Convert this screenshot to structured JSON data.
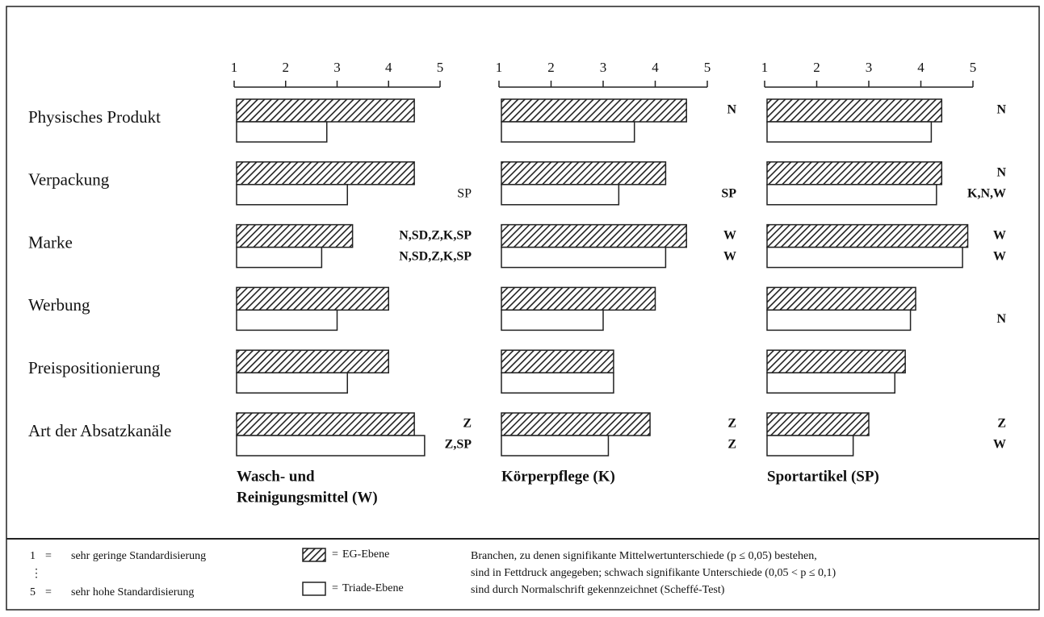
{
  "categories": [
    "Physisches Produkt",
    "Verpackung",
    "Marke",
    "Werbung",
    "Preispositionierung",
    "Art der Absatzkanäle"
  ],
  "chart_data": [
    {
      "type": "hbar",
      "title": [
        "Wasch- und",
        "Reinigungsmittel (W)"
      ],
      "xlim": [
        1,
        5
      ],
      "xticks": [
        1,
        2,
        3,
        4,
        5
      ],
      "series": [
        {
          "name": "EG-Ebene",
          "pattern": "hatch",
          "color": "#222222",
          "values": [
            4.5,
            4.5,
            3.3,
            4.0,
            4.0,
            4.5
          ],
          "notes": [
            null,
            null,
            {
              "text": "N,SD,Z,K,SP",
              "bold": true
            },
            null,
            null,
            {
              "text": "Z",
              "bold": true
            }
          ]
        },
        {
          "name": "Triade-Ebene",
          "pattern": "none",
          "color": "#ffffff",
          "values": [
            2.8,
            3.2,
            2.7,
            3.0,
            3.2,
            4.7
          ],
          "notes": [
            null,
            {
              "text": "SP",
              "bold": false
            },
            {
              "text": "N,SD,Z,K,SP",
              "bold": true
            },
            null,
            null,
            {
              "text": "Z,SP",
              "bold": true
            }
          ]
        }
      ]
    },
    {
      "type": "hbar",
      "title": [
        "Körperpflege (K)"
      ],
      "xlim": [
        1,
        5
      ],
      "xticks": [
        1,
        2,
        3,
        4,
        5
      ],
      "series": [
        {
          "name": "EG-Ebene",
          "pattern": "hatch",
          "color": "#222222",
          "values": [
            4.6,
            4.2,
            4.6,
            4.0,
            3.2,
            3.9
          ],
          "notes": [
            {
              "text": "N",
              "bold": true
            },
            null,
            {
              "text": "W",
              "bold": true
            },
            null,
            null,
            {
              "text": "Z",
              "bold": true
            }
          ]
        },
        {
          "name": "Triade-Ebene",
          "pattern": "none",
          "color": "#ffffff",
          "values": [
            3.6,
            3.3,
            4.2,
            3.0,
            3.2,
            3.1
          ],
          "notes": [
            null,
            {
              "text": "SP",
              "bold": true
            },
            {
              "text": "W",
              "bold": true
            },
            null,
            null,
            {
              "text": "Z",
              "bold": true
            }
          ]
        }
      ]
    },
    {
      "type": "hbar",
      "title": [
        "Sportartikel (SP)"
      ],
      "xlim": [
        1,
        5
      ],
      "xticks": [
        1,
        2,
        3,
        4,
        5
      ],
      "series": [
        {
          "name": "EG-Ebene",
          "pattern": "hatch",
          "color": "#222222",
          "values": [
            4.4,
            4.4,
            4.9,
            3.9,
            3.7,
            3.0
          ],
          "notes": [
            {
              "text": "N",
              "bold": true
            },
            {
              "text": "N",
              "bold": true
            },
            {
              "text": "W",
              "bold": true
            },
            null,
            null,
            {
              "text": "Z",
              "bold": true
            }
          ]
        },
        {
          "name": "Triade-Ebene",
          "pattern": "none",
          "color": "#ffffff",
          "values": [
            4.2,
            4.3,
            4.8,
            3.8,
            3.5,
            2.7
          ],
          "notes": [
            null,
            {
              "text": "K,N,W",
              "bold": true
            },
            {
              "text": "W",
              "bold": true
            },
            {
              "text": "N",
              "bold": true
            },
            null,
            {
              "text": "W",
              "bold": true
            }
          ]
        }
      ]
    }
  ],
  "legend": {
    "separator": "=",
    "dots": "⋮",
    "scale": [
      {
        "value": 1,
        "text": "sehr geringe Standardisierung"
      },
      {
        "value": 5,
        "text": "sehr hohe Standardisierung"
      }
    ],
    "note": [
      "Branchen, zu denen signifikante Mittelwertunterschiede (p ≤ 0,05) bestehen,",
      "sind in Fettdruck angegeben; schwach signifikante Unterschiede (0,05 < p ≤ 0,1)",
      "sind durch Normalschrift gekennzeichnet (Scheffé-Test)"
    ]
  }
}
